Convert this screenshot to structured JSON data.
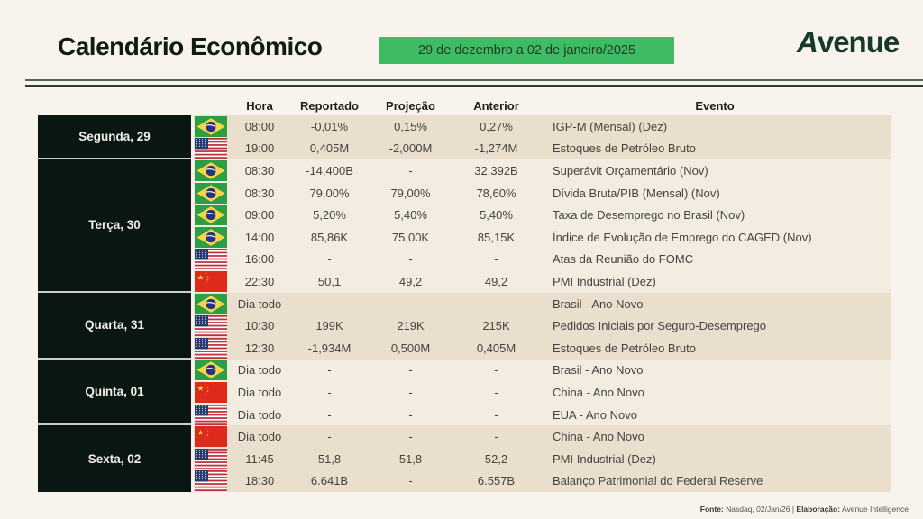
{
  "header": {
    "title": "Calendário Econômico",
    "date_range": "29 de dezembro a 02 de janeiro/2025",
    "logo_text": "venue",
    "logo_initial": "A"
  },
  "colors": {
    "badge_green": "#3ebc64",
    "day_cell_bg": "#0a1611",
    "group_dark_bg": "#eadfcc",
    "group_light_bg": "#f3ede1",
    "page_bg": "#f8f4ed",
    "logo_green": "#17392b"
  },
  "table": {
    "columns": {
      "hora": "Hora",
      "reportado": "Reportado",
      "projecao": "Projeção",
      "anterior": "Anterior",
      "evento": "Evento"
    },
    "groups": [
      {
        "day": "Segunda, 29",
        "shade": "dark",
        "rows": [
          {
            "flag": "brazil-flag",
            "hora": "08:00",
            "reportado": "-0,01%",
            "projecao": "0,15%",
            "anterior": "0,27%",
            "evento": "IGP-M (Mensal) (Dez)"
          },
          {
            "flag": "usa-flag",
            "hora": "19:00",
            "reportado": "0,405M",
            "projecao": "-2,000M",
            "anterior": "-1,274M",
            "evento": "Estoques de Petróleo Bruto"
          }
        ]
      },
      {
        "day": "Terça, 30",
        "shade": "light",
        "rows": [
          {
            "flag": "brazil-flag",
            "hora": "08:30",
            "reportado": "-14,400B",
            "projecao": "-",
            "anterior": "32,392B",
            "evento": "Superávit Orçamentário (Nov)"
          },
          {
            "flag": "brazil-flag",
            "hora": "08:30",
            "reportado": "79,00%",
            "projecao": "79,00%",
            "anterior": "78,60%",
            "evento": "Dívida Bruta/PIB (Mensal) (Nov)"
          },
          {
            "flag": "brazil-flag",
            "hora": "09:00",
            "reportado": "5,20%",
            "projecao": "5,40%",
            "anterior": "5,40%",
            "evento": "Taxa de Desemprego no Brasil (Nov)"
          },
          {
            "flag": "brazil-flag",
            "hora": "14:00",
            "reportado": "85,86K",
            "projecao": "75,00K",
            "anterior": "85,15K",
            "evento": "Índice de Evolução de Emprego do CAGED (Nov)"
          },
          {
            "flag": "usa-flag",
            "hora": "16:00",
            "reportado": "-",
            "projecao": "-",
            "anterior": "-",
            "evento": "Atas da Reunião do FOMC"
          },
          {
            "flag": "china-flag",
            "hora": "22:30",
            "reportado": "50,1",
            "projecao": "49,2",
            "anterior": "49,2",
            "evento": "PMI Industrial (Dez)"
          }
        ]
      },
      {
        "day": "Quarta, 31",
        "shade": "dark",
        "rows": [
          {
            "flag": "brazil-flag",
            "hora": "Dia todo",
            "reportado": "-",
            "projecao": "-",
            "anterior": "-",
            "evento": "Brasil - Ano Novo"
          },
          {
            "flag": "usa-flag",
            "hora": "10:30",
            "reportado": "199K",
            "projecao": "219K",
            "anterior": "215K",
            "evento": "Pedidos Iniciais por Seguro-Desemprego"
          },
          {
            "flag": "usa-flag",
            "hora": "12:30",
            "reportado": "-1,934M",
            "projecao": "0,500M",
            "anterior": "0,405M",
            "evento": "Estoques de Petróleo Bruto"
          }
        ]
      },
      {
        "day": "Quinta, 01",
        "shade": "light",
        "rows": [
          {
            "flag": "brazil-flag",
            "hora": "Dia todo",
            "reportado": "-",
            "projecao": "-",
            "anterior": "-",
            "evento": "Brasil - Ano Novo"
          },
          {
            "flag": "china-flag",
            "hora": "Dia todo",
            "reportado": "-",
            "projecao": "-",
            "anterior": "-",
            "evento": "China - Ano Novo"
          },
          {
            "flag": "usa-flag",
            "hora": "Dia todo",
            "reportado": "-",
            "projecao": "-",
            "anterior": "-",
            "evento": "EUA - Ano Novo"
          }
        ]
      },
      {
        "day": "Sexta, 02",
        "shade": "dark",
        "rows": [
          {
            "flag": "china-flag",
            "hora": "Dia todo",
            "reportado": "-",
            "projecao": "-",
            "anterior": "-",
            "evento": "China - Ano Novo"
          },
          {
            "flag": "usa-flag",
            "hora": "11:45",
            "reportado": "51,8",
            "projecao": "51,8",
            "anterior": "52,2",
            "evento": "PMI Industrial (Dez)"
          },
          {
            "flag": "usa-flag",
            "hora": "18:30",
            "reportado": "6.641B",
            "projecao": "-",
            "anterior": "6.557B",
            "evento": "Balanço Patrimonial do Federal Reserve"
          }
        ]
      }
    ]
  },
  "footer": {
    "fonte_label": "Fonte:",
    "fonte_value": " Nasdaq, 02/Jan/26 | ",
    "elaboracao_label": "Elaboração:",
    "elaboracao_value": " Avenue Intelligence"
  }
}
